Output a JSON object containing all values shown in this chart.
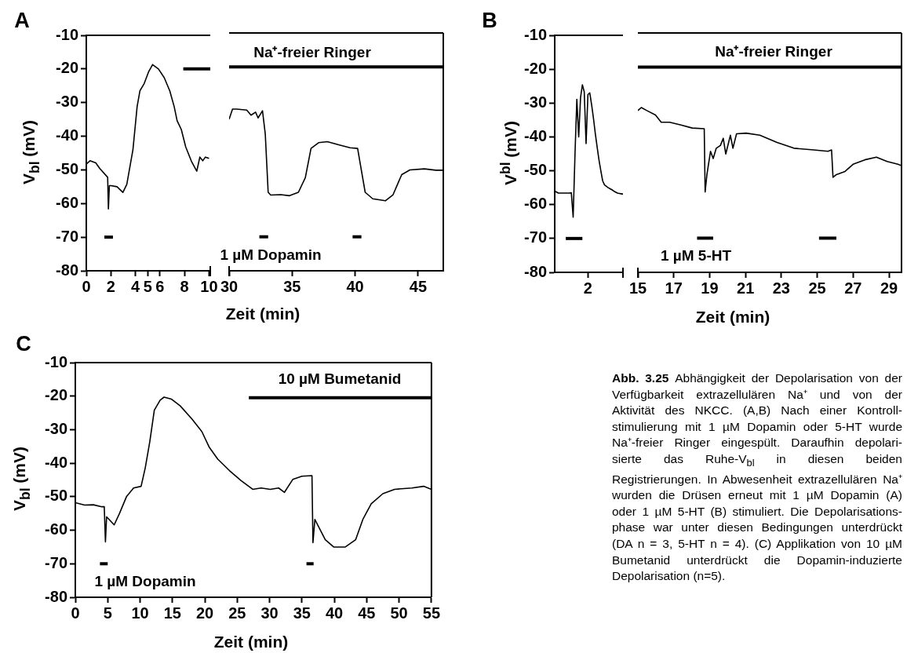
{
  "chart_data": [
    {
      "type": "line",
      "title": "A",
      "ylabel": "V$_{bl}$ (mV)",
      "xlim": [
        0,
        10.1
      ],
      "xticks": [
        0,
        2,
        4,
        5,
        6,
        8,
        10
      ],
      "ylim": [
        -80,
        -10
      ],
      "yticks": [
        -80,
        -70,
        -60,
        -50,
        -40,
        -30,
        -20,
        -10
      ],
      "series": [
        {
          "color": "#000000",
          "x": [
            0,
            0.3,
            0.77,
            1.1,
            1.74,
            1.8,
            1.88,
            2,
            2.5,
            2.98,
            3.3,
            3.8,
            4.14,
            4.37,
            4.72,
            5.07,
            5.4,
            5.88,
            6.35,
            6.8,
            7.16,
            7.4,
            7.74,
            8.1,
            8.56,
            9.0,
            9.25,
            9.49,
            9.7,
            10.0
          ],
          "values": [
            -48.3,
            -47.3,
            -47.9,
            -49.6,
            -52.2,
            -61.6,
            -54.7,
            -54.7,
            -55,
            -56.7,
            -54.3,
            -44,
            -31.2,
            -26.5,
            -24.3,
            -20.9,
            -18.7,
            -20,
            -22.6,
            -26.5,
            -31.2,
            -35.4,
            -38,
            -43.2,
            -47.4,
            -50.4,
            -46.2,
            -47.3,
            -46.2,
            -46.6
          ]
        },
        {
          "color": "#000000",
          "x": [
            1.47,
            2.17
          ],
          "values": [
            -70,
            -70
          ]
        },
        {
          "color": "#000000",
          "x": [
            7.9,
            10.1
          ],
          "values": [
            -20,
            -20
          ]
        }
      ]
    },
    {
      "type": "line",
      "xlabel": "Zeit (min)",
      "xlim": [
        30,
        47
      ],
      "xticks": [
        30,
        35,
        40,
        45
      ],
      "ylim": [
        -80,
        -10
      ],
      "tick_labels": "x",
      "annotations": [
        "Na⁺-freier Ringer",
        "1 µM Dopamin"
      ],
      "series": [
        {
          "color": "#000000",
          "x": [
            30,
            30.27,
            30.6,
            31.4,
            31.74,
            32.1,
            32.3,
            32.65,
            32.87,
            33.1,
            33.3,
            34.1,
            34.8,
            35.5,
            36.05,
            36.5,
            37.1,
            37.8,
            38.7,
            39.6,
            40.2,
            40.4,
            40.8,
            41.4,
            42.4,
            43.0,
            43.7,
            44.35,
            45.5,
            46.4,
            47
          ],
          "values": [
            -35.4,
            -32.4,
            -32.4,
            -32.7,
            -34.2,
            -33.3,
            -35,
            -32.9,
            -39.7,
            -56.9,
            -57.7,
            -57.6,
            -57.9,
            -56.9,
            -52.6,
            -44,
            -42.3,
            -42,
            -42.9,
            -43.8,
            -44,
            -48.3,
            -56.9,
            -58.8,
            -59.4,
            -57.7,
            -51.7,
            -50.3,
            -50,
            -50.4,
            -50.4
          ]
        },
        {
          "color": "#000000",
          "x": [
            32.4,
            33.1
          ],
          "values": [
            -70,
            -70
          ]
        },
        {
          "color": "#000000",
          "x": [
            39.8,
            40.5
          ],
          "values": [
            -70,
            -70
          ]
        },
        {
          "color": "#000000",
          "x": [
            30,
            47
          ],
          "values": [
            -20,
            -20
          ]
        }
      ]
    },
    {
      "type": "line",
      "title": "B",
      "ylabel": "V$^{bl}$ (mV)",
      "categories": [
        null,
        null,
        null,
        null,
        null,
        null,
        null,
        null,
        null,
        null,
        null,
        null,
        null,
        null,
        null,
        null,
        null,
        null,
        "2",
        null,
        null,
        null,
        null,
        null,
        null,
        null,
        null,
        null,
        null,
        null,
        null,
        null,
        null,
        null,
        null,
        null,
        null,
        null
      ],
      "ylim": [
        -80,
        -10
      ],
      "yticks": [
        -80,
        -70,
        -60,
        -50,
        -40,
        -30,
        -20,
        -10
      ],
      "series": [
        {
          "color": "#000000",
          "values": [
            -56.0,
            -56.3,
            -56.6,
            -56.6,
            -56.6,
            -56.6,
            -56.6,
            -56.6,
            -56.6,
            -56.5,
            -63.7,
            -45,
            -28.9,
            -40,
            -28.4,
            -24.6,
            -26.7,
            -42,
            -27.5,
            -27,
            -30.5,
            -34.5,
            -39,
            -43,
            -46.8,
            -50,
            -53,
            -54.2,
            -54.6,
            -55,
            -55.3,
            -55.6,
            -56,
            -56.3,
            -56.6,
            -56.7,
            -56.8,
            -56.9
          ]
        },
        {
          "color": "#000000",
          "values": [
            null,
            null,
            null,
            null,
            null,
            null,
            -70,
            -70,
            -70,
            -70,
            -70,
            -70,
            -70,
            -70,
            -70,
            -70,
            null,
            null,
            null,
            null,
            null,
            null,
            null,
            null,
            null,
            null,
            null,
            null,
            null,
            null,
            null,
            null,
            null,
            null,
            null,
            null,
            null,
            null
          ]
        }
      ]
    },
    {
      "type": "line",
      "xlabel": "Zeit (min)",
      "xlim": [
        15,
        29.7
      ],
      "xticks": [
        15,
        17,
        19,
        21,
        23,
        25,
        27,
        29
      ],
      "ylim": [
        -80,
        -10
      ],
      "tick_labels": "x",
      "annotations": [
        "Na⁺-freier Ringer",
        "1 µM 5-HT"
      ],
      "series": [
        {
          "color": "#000000",
          "x": [
            15,
            15.19,
            15.5,
            15.98,
            16.3,
            16.77,
            17.4,
            18.03,
            18.7,
            18.75,
            18.85,
            19.05,
            19.2,
            19.37,
            19.6,
            19.76,
            19.9,
            20.16,
            20.3,
            20.5,
            21.03,
            21.8,
            22.76,
            23.7,
            24.8,
            25.6,
            25.8,
            25.88,
            26.07,
            26.55,
            27.0,
            27.65,
            28.3,
            28.9,
            29.5,
            29.7
          ],
          "values": [
            -32.7,
            -31.8,
            -32.7,
            -34,
            -36.1,
            -36.1,
            -36.9,
            -37.8,
            -38,
            -56.5,
            -51.4,
            -44.6,
            -46.7,
            -43.7,
            -42.9,
            -40.8,
            -45.4,
            -39.9,
            -43.7,
            -39.5,
            -39.3,
            -39.9,
            -42,
            -43.7,
            -44.2,
            -44.6,
            -44.2,
            -52.2,
            -51.4,
            -50.5,
            -48.4,
            -47.1,
            -46.3,
            -47.6,
            -48.4,
            -48.8
          ]
        },
        {
          "color": "#000000",
          "x": [
            18.3,
            19.2
          ],
          "values": [
            -70,
            -70
          ]
        },
        {
          "color": "#000000",
          "x": [
            25.1,
            26.07
          ],
          "values": [
            -70,
            -70
          ]
        },
        {
          "color": "#000000",
          "x": [
            15,
            29.7
          ],
          "values": [
            -20,
            -20
          ]
        }
      ]
    },
    {
      "type": "line",
      "title": "C",
      "ylabel": "V$_{bl}$ (mV)",
      "xlabel": "Zeit (min)",
      "xlim": [
        0,
        55
      ],
      "xticks": [
        0,
        5,
        10,
        15,
        20,
        25,
        30,
        35,
        40,
        45,
        50,
        55
      ],
      "ylim": [
        -80,
        -10
      ],
      "yticks": [
        -80,
        -70,
        -60,
        -50,
        -40,
        -30,
        -20,
        -10
      ],
      "annotations": [
        "10 µM Bumetanid",
        "1 µM Dopamin"
      ],
      "series": [
        {
          "color": "#000000",
          "x": [
            0,
            1.43,
            2.77,
            4.1,
            4.47,
            4.65,
            4.83,
            5.46,
            6.0,
            6.8,
            7.9,
            9.0,
            10.16,
            10.8,
            11.5,
            12.2,
            13.1,
            13.7,
            14.85,
            16.2,
            18,
            19.55,
            20.7,
            22.0,
            23.8,
            25.6,
            27.4,
            28.7,
            30.1,
            31.4,
            32.3,
            33.6,
            35,
            36.55,
            36.7,
            37.0,
            37.7,
            38.6,
            39.9,
            41.7,
            43.3,
            44.4,
            45.7,
            47.5,
            49.3,
            52,
            53.8,
            55
          ],
          "values": [
            -51.8,
            -52.5,
            -52.4,
            -53,
            -53,
            -63.5,
            -56,
            -57.3,
            -58.4,
            -55.1,
            -50,
            -47.4,
            -46.9,
            -41.4,
            -33.6,
            -24.2,
            -21.2,
            -20.3,
            -20.9,
            -22.9,
            -26.8,
            -30.6,
            -35.3,
            -38.8,
            -42.2,
            -45.2,
            -47.8,
            -47.4,
            -47.8,
            -47.4,
            -48.7,
            -44.8,
            -43.9,
            -43.7,
            -63.7,
            -56.8,
            -59.4,
            -62.8,
            -65,
            -65,
            -62.8,
            -56.8,
            -52.1,
            -49.1,
            -47.8,
            -47.4,
            -46.9,
            -47.8
          ]
        },
        {
          "color": "#000000",
          "x": [
            3.8,
            5.0
          ],
          "values": [
            -70,
            -70
          ]
        },
        {
          "color": "#000000",
          "x": [
            35.7,
            36.8
          ],
          "values": [
            -70,
            -70
          ]
        },
        {
          "color": "#000000",
          "x": [
            26.8,
            55
          ],
          "values": [
            -20.5,
            -20.5
          ]
        }
      ]
    },
    {
      "type": "other",
      "title": "Abb. 3.25",
      "annotations": [
        "Abhängigkeit der Depolarisation von der",
        "Verfügbarkeit extrazellulären Na⁺ und von der",
        "Aktivität des NKCC. (A,B) Nach einer Kontroll-",
        "stimulierung mit 1 µM Dopamin oder 5-HT wurde",
        "Na⁺-freier Ringer eingespült. Daraufhin depolari-",
        "sierte das Ruhe-V$_{bl}$ in diesen beiden",
        "Registrierungen. In Abwesenheit extrazellulären Na⁺",
        "wurden die Drüsen erneut mit 1 µM Dopamin (A)",
        "oder 1 µM 5-HT (B) stimuliert. Die Depolarisations-",
        "phase war unter diesen Bedingungen unterdrückt",
        "(DA n = 3, 5-HT n = 4). (C) Applikation von 10 µM",
        "Bumetanid unterdrückt die Dopamin-induzierte",
        "Depolarisation (n=5)."
      ]
    }
  ]
}
